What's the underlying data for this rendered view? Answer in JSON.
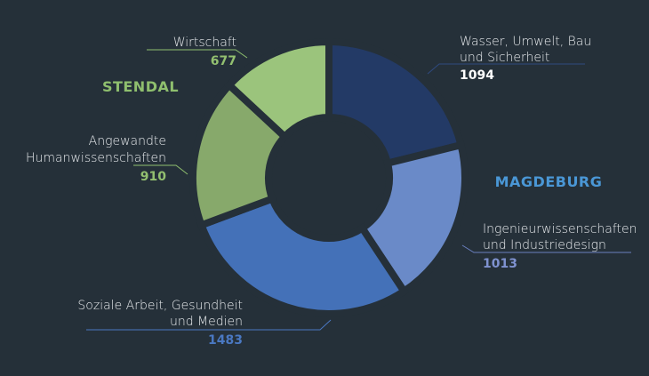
{
  "chart_data": {
    "type": "pie",
    "donut": true,
    "groups": [
      {
        "name": "STENDAL",
        "color": "#8fbf6e"
      },
      {
        "name": "MAGDEBURG",
        "color": "#4a97d6"
      }
    ],
    "slices": [
      {
        "label_line1": "Wasser, Umwelt, Bau",
        "label_line2": "und Sicherheit",
        "value": 1094,
        "value_text": "1094",
        "color": "#233a66",
        "value_color": "#ffffff",
        "group": "MAGDEBURG"
      },
      {
        "label_line1": "Ingenieurwissenschaften",
        "label_line2": "und Industriedesign",
        "value": 1013,
        "value_text": "1013",
        "color": "#6a8ac8",
        "value_color": "#7f92d0",
        "group": "MAGDEBURG"
      },
      {
        "label_line1": "Soziale Arbeit, Gesundheit",
        "label_line2": "und Medien",
        "value": 1483,
        "value_text": "1483",
        "color": "#4471b8",
        "value_color": "#4a78c2",
        "group": "MAGDEBURG"
      },
      {
        "label_line1": "Angewandte",
        "label_line2": "Humanwissenschaften",
        "value": 910,
        "value_text": "910",
        "color": "#87a96b",
        "value_color": "#93c070",
        "group": "STENDAL"
      },
      {
        "label_line1": "Wirtschaft",
        "label_line2": "",
        "value": 677,
        "value_text": "677",
        "color": "#9bc47c",
        "value_color": "#93c070",
        "group": "STENDAL"
      }
    ],
    "background": "#253039"
  }
}
